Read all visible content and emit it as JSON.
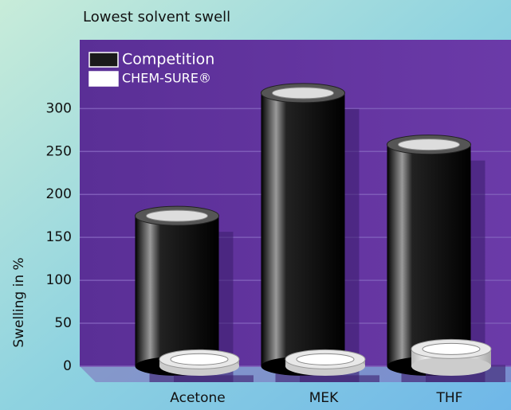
{
  "chart_data": {
    "type": "bar",
    "title": "Lowest solvent swell",
    "y_label": "Swelling in %",
    "categories": [
      "Acetone",
      "MEK",
      "THF"
    ],
    "series": [
      {
        "name": "Competition",
        "color": "#1a1a1a",
        "values": [
          175,
          318,
          258
        ]
      },
      {
        "name": "CHEM-SURE®",
        "color": "#ffffff",
        "values": [
          8,
          8,
          20
        ]
      }
    ],
    "ylim": [
      0,
      380
    ],
    "yticks": [
      0,
      50,
      100,
      150,
      200,
      250,
      300
    ],
    "grid": true,
    "legend": "top-left"
  }
}
